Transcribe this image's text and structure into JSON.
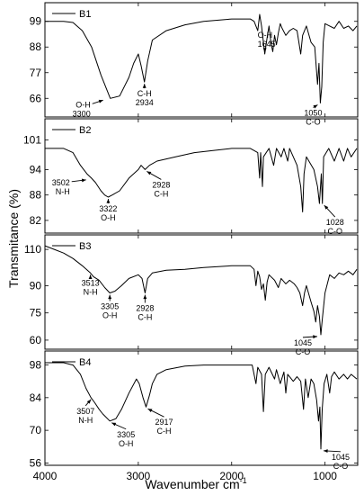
{
  "chart_data": {
    "type": "line",
    "xlabel": "Wavenumber cm",
    "xlabel_sup": "-1",
    "ylabel": "Transmitance (%)",
    "xlim": [
      4000,
      650
    ],
    "x_ticks": [
      4000,
      3000,
      2000,
      1000
    ],
    "accent_color": "#ff0000",
    "panels": [
      {
        "name": "B1",
        "ylim": [
          58,
          107
        ],
        "y_ticks": [
          99,
          88,
          77,
          66
        ],
        "points": [
          [
            4000,
            99
          ],
          [
            3800,
            99
          ],
          [
            3700,
            98.5
          ],
          [
            3600,
            95
          ],
          [
            3500,
            88
          ],
          [
            3400,
            76
          ],
          [
            3300,
            66
          ],
          [
            3200,
            67
          ],
          [
            3100,
            75
          ],
          [
            3050,
            81
          ],
          [
            3000,
            85
          ],
          [
            2970,
            80
          ],
          [
            2934,
            73
          ],
          [
            2900,
            82
          ],
          [
            2850,
            91
          ],
          [
            2700,
            95
          ],
          [
            2500,
            97.5
          ],
          [
            2300,
            99
          ],
          [
            2000,
            100
          ],
          [
            1800,
            100
          ],
          [
            1760,
            99
          ],
          [
            1720,
            95
          ],
          [
            1700,
            102
          ],
          [
            1680,
            97
          ],
          [
            1660,
            90
          ],
          [
            1645,
            85
          ],
          [
            1620,
            92
          ],
          [
            1600,
            97
          ],
          [
            1580,
            90
          ],
          [
            1560,
            86
          ],
          [
            1540,
            93
          ],
          [
            1520,
            89
          ],
          [
            1500,
            94
          ],
          [
            1480,
            98
          ],
          [
            1460,
            96
          ],
          [
            1420,
            93
          ],
          [
            1380,
            95
          ],
          [
            1340,
            96
          ],
          [
            1300,
            95
          ],
          [
            1260,
            85
          ],
          [
            1240,
            93
          ],
          [
            1200,
            97
          ],
          [
            1150,
            90
          ],
          [
            1110,
            88
          ],
          [
            1080,
            72
          ],
          [
            1065,
            81
          ],
          [
            1050,
            64
          ],
          [
            1035,
            71
          ],
          [
            1020,
            90
          ],
          [
            1000,
            98
          ],
          [
            950,
            97
          ],
          [
            900,
            96
          ],
          [
            850,
            99
          ],
          [
            800,
            96
          ],
          [
            750,
            97
          ],
          [
            700,
            95
          ],
          [
            660,
            97
          ]
        ],
        "red_segment": [
          3380,
          3240
        ],
        "annotations": [
          {
            "id": "oh-3300-label",
            "label": "O-H",
            "sub": "3300",
            "x": 3300,
            "y": 66
          },
          {
            "id": "ch-2934-label",
            "label": "C-H",
            "sub": "2934",
            "x": 2934,
            "y": 73
          },
          {
            "id": "oh-1645-label",
            "label": "O-H",
            "sub": "1645",
            "x": 1645,
            "y": 85
          },
          {
            "id": "co-1050-label",
            "label": "1050",
            "sub": "C-O",
            "x": 1050,
            "y": 64
          }
        ]
      },
      {
        "name": "B2",
        "ylim": [
          79,
          106
        ],
        "y_ticks": [
          101,
          94,
          88,
          82
        ],
        "points": [
          [
            4000,
            99
          ],
          [
            3800,
            99
          ],
          [
            3700,
            98
          ],
          [
            3620,
            95
          ],
          [
            3550,
            93
          ],
          [
            3502,
            92
          ],
          [
            3460,
            91
          ],
          [
            3400,
            89
          ],
          [
            3360,
            88
          ],
          [
            3322,
            87.5
          ],
          [
            3280,
            88
          ],
          [
            3200,
            89
          ],
          [
            3100,
            92
          ],
          [
            3000,
            94
          ],
          [
            2970,
            95
          ],
          [
            2928,
            94
          ],
          [
            2880,
            95
          ],
          [
            2800,
            96
          ],
          [
            2600,
            97
          ],
          [
            2400,
            98
          ],
          [
            2200,
            98.5
          ],
          [
            2000,
            99
          ],
          [
            1800,
            99
          ],
          [
            1720,
            98
          ],
          [
            1700,
            92
          ],
          [
            1690,
            98
          ],
          [
            1670,
            90
          ],
          [
            1660,
            97
          ],
          [
            1600,
            99
          ],
          [
            1550,
            95
          ],
          [
            1520,
            99
          ],
          [
            1470,
            97
          ],
          [
            1440,
            99
          ],
          [
            1400,
            96
          ],
          [
            1380,
            99
          ],
          [
            1300,
            95
          ],
          [
            1260,
            90
          ],
          [
            1240,
            84
          ],
          [
            1225,
            93
          ],
          [
            1200,
            97
          ],
          [
            1120,
            94
          ],
          [
            1080,
            90
          ],
          [
            1060,
            86
          ],
          [
            1040,
            93
          ],
          [
            1028,
            86
          ],
          [
            1015,
            97
          ],
          [
            960,
            99
          ],
          [
            900,
            96
          ],
          [
            850,
            99
          ],
          [
            800,
            96
          ],
          [
            760,
            99
          ],
          [
            720,
            97
          ],
          [
            660,
            99
          ]
        ],
        "annotations": [
          {
            "id": "nh-3502-label",
            "label": "3502",
            "sub": "N-H",
            "x": 3502,
            "y": 92
          },
          {
            "id": "oh-3322-label",
            "label": "3322",
            "sub": "O-H",
            "x": 3322,
            "y": 87.5
          },
          {
            "id": "ch-2928-label",
            "label": "2928",
            "sub": "C-H",
            "x": 2928,
            "y": 94
          },
          {
            "id": "co-1028-label",
            "label": "1028",
            "sub": "C-O",
            "x": 1028,
            "y": 86
          }
        ]
      },
      {
        "name": "B3",
        "ylim": [
          55,
          118
        ],
        "y_ticks": [
          110,
          90,
          75,
          60
        ],
        "points": [
          [
            4000,
            112
          ],
          [
            3900,
            110
          ],
          [
            3800,
            108
          ],
          [
            3700,
            105
          ],
          [
            3600,
            101
          ],
          [
            3513,
            97
          ],
          [
            3480,
            95
          ],
          [
            3420,
            93
          ],
          [
            3360,
            89
          ],
          [
            3305,
            86
          ],
          [
            3250,
            87
          ],
          [
            3180,
            90
          ],
          [
            3100,
            94
          ],
          [
            3000,
            96
          ],
          [
            2960,
            94
          ],
          [
            2928,
            86
          ],
          [
            2900,
            94
          ],
          [
            2850,
            97
          ],
          [
            2700,
            98.5
          ],
          [
            2500,
            99
          ],
          [
            2300,
            100
          ],
          [
            2000,
            101
          ],
          [
            1800,
            101
          ],
          [
            1760,
            99
          ],
          [
            1740,
            90
          ],
          [
            1720,
            98
          ],
          [
            1700,
            95
          ],
          [
            1680,
            88
          ],
          [
            1660,
            91
          ],
          [
            1640,
            82
          ],
          [
            1620,
            92
          ],
          [
            1600,
            96
          ],
          [
            1540,
            93
          ],
          [
            1500,
            89
          ],
          [
            1470,
            94
          ],
          [
            1420,
            91
          ],
          [
            1380,
            93
          ],
          [
            1330,
            91
          ],
          [
            1300,
            89
          ],
          [
            1270,
            86
          ],
          [
            1240,
            79
          ],
          [
            1220,
            86
          ],
          [
            1200,
            90
          ],
          [
            1150,
            81
          ],
          [
            1120,
            76
          ],
          [
            1100,
            70
          ],
          [
            1080,
            79
          ],
          [
            1060,
            73
          ],
          [
            1045,
            63
          ],
          [
            1030,
            71
          ],
          [
            1000,
            86
          ],
          [
            950,
            96
          ],
          [
            900,
            94
          ],
          [
            850,
            97
          ],
          [
            800,
            96
          ],
          [
            750,
            98
          ],
          [
            700,
            96
          ],
          [
            660,
            99
          ]
        ],
        "annotations": [
          {
            "id": "nh-3513-label",
            "label": "3513",
            "sub": "N-H",
            "x": 3513,
            "y": 97
          },
          {
            "id": "oh-3305-label",
            "label": "3305",
            "sub": "O-H",
            "x": 3305,
            "y": 86
          },
          {
            "id": "ch-2928b-label",
            "label": "2928",
            "sub": "C-H",
            "x": 2928,
            "y": 86
          },
          {
            "id": "co-1045-label",
            "label": "1045",
            "sub": "C-O",
            "x": 1045,
            "y": 63
          }
        ]
      },
      {
        "name": "B4",
        "ylim": [
          55,
          104
        ],
        "y_ticks": [
          98,
          84,
          70,
          56
        ],
        "points": [
          [
            4000,
            99
          ],
          [
            3800,
            99
          ],
          [
            3700,
            98
          ],
          [
            3620,
            94
          ],
          [
            3560,
            88
          ],
          [
            3507,
            84
          ],
          [
            3470,
            82
          ],
          [
            3420,
            79
          ],
          [
            3380,
            77
          ],
          [
            3305,
            74
          ],
          [
            3240,
            75
          ],
          [
            3180,
            79
          ],
          [
            3100,
            86
          ],
          [
            3020,
            92
          ],
          [
            2990,
            90
          ],
          [
            2950,
            84
          ],
          [
            2917,
            80
          ],
          [
            2880,
            85
          ],
          [
            2850,
            90
          ],
          [
            2800,
            94
          ],
          [
            2700,
            96
          ],
          [
            2500,
            97.5
          ],
          [
            2300,
            98
          ],
          [
            2000,
            98
          ],
          [
            1780,
            98
          ],
          [
            1740,
            90
          ],
          [
            1720,
            97
          ],
          [
            1680,
            94
          ],
          [
            1660,
            78
          ],
          [
            1640,
            94
          ],
          [
            1600,
            97
          ],
          [
            1540,
            92
          ],
          [
            1520,
            96
          ],
          [
            1480,
            90
          ],
          [
            1440,
            95
          ],
          [
            1420,
            86
          ],
          [
            1400,
            94
          ],
          [
            1340,
            91
          ],
          [
            1300,
            93
          ],
          [
            1260,
            91
          ],
          [
            1230,
            79
          ],
          [
            1210,
            92
          ],
          [
            1180,
            84
          ],
          [
            1150,
            92
          ],
          [
            1120,
            90
          ],
          [
            1090,
            83
          ],
          [
            1070,
            74
          ],
          [
            1055,
            80
          ],
          [
            1045,
            62
          ],
          [
            1030,
            79
          ],
          [
            1010,
            90
          ],
          [
            980,
            94
          ],
          [
            950,
            86
          ],
          [
            930,
            93
          ],
          [
            900,
            95
          ],
          [
            850,
            92
          ],
          [
            800,
            94
          ],
          [
            760,
            92
          ],
          [
            720,
            94
          ],
          [
            660,
            92
          ]
        ],
        "annotations": [
          {
            "id": "nh-3507-label",
            "label": "3507",
            "sub": "N-H",
            "x": 3507,
            "y": 84
          },
          {
            "id": "oh-3305b-label",
            "label": "3305",
            "sub": "O-H",
            "x": 3305,
            "y": 74
          },
          {
            "id": "ch-2917-label",
            "label": "2917",
            "sub": "C-H",
            "x": 2917,
            "y": 80
          },
          {
            "id": "co-1045b-label",
            "label": "1045",
            "sub": "C-O",
            "x": 1045,
            "y": 62
          }
        ]
      }
    ]
  }
}
